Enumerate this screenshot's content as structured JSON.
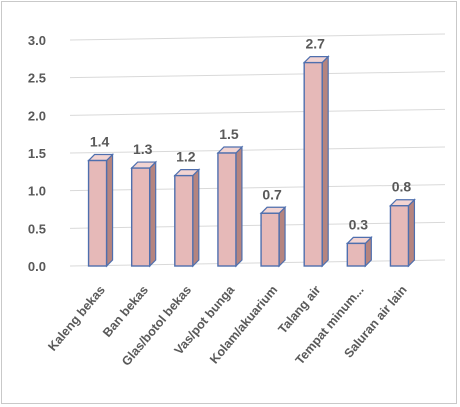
{
  "chart_data": {
    "type": "bar",
    "style": "3d-column",
    "categories": [
      "Kaleng bekas",
      "Ban bekas",
      "Glas/botol bekas",
      "Vas/pot bunga",
      "Kolam/akuarium",
      "Talang air",
      "Tempat minum...",
      "Saluran air lain"
    ],
    "values": [
      1.4,
      1.3,
      1.2,
      1.5,
      0.7,
      2.7,
      0.3,
      0.8
    ],
    "value_labels": [
      "1.4",
      "1.3",
      "1.2",
      "1.5",
      "0.7",
      "2.7",
      "0.3",
      "0.8"
    ],
    "y_ticks": [
      "0.0",
      "0.5",
      "1.0",
      "1.5",
      "2.0",
      "2.5",
      "3.0"
    ],
    "ylim": [
      0,
      3.0
    ],
    "grid": true,
    "legend": "none",
    "title": "",
    "xlabel": "",
    "ylabel": "",
    "colors": {
      "bar_front": "#e6b9b8",
      "bar_side": "#b5847f",
      "bar_top": "#f2d4d2",
      "bar_outline": "#4f6fae",
      "grid": "#d9d9d9",
      "text": "#595959"
    }
  }
}
